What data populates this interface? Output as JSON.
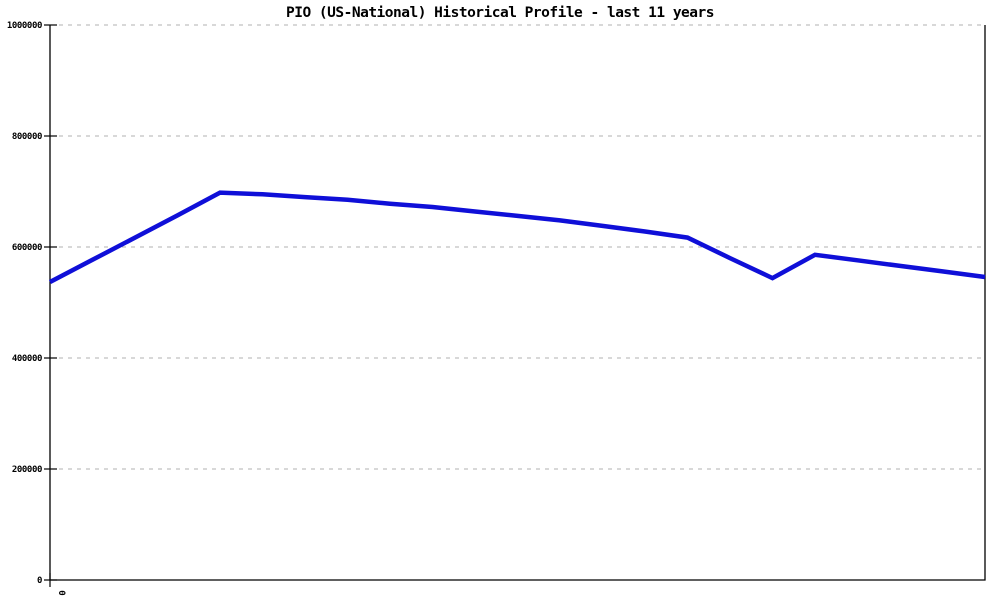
{
  "chart_data": {
    "type": "line",
    "title": "PIO (US-National) Historical Profile - last 11 years",
    "x": [
      0,
      1,
      2,
      3,
      4,
      5,
      6,
      7,
      8,
      9,
      10,
      11,
      12,
      13,
      14,
      15,
      16,
      17,
      18,
      19,
      20,
      21,
      22
    ],
    "values": [
      537000,
      577000,
      617000,
      657000,
      698000,
      695000,
      690000,
      685000,
      678000,
      672000,
      664000,
      656000,
      648000,
      638000,
      628000,
      617000,
      580000,
      544000,
      586000,
      576000,
      566000,
      556000,
      546000
    ],
    "xlabel": "",
    "ylabel": "",
    "ylim": [
      0,
      1000000
    ],
    "y_tick_interval": 200000,
    "y_tick_labels": [
      "0",
      "200000",
      "400000",
      "600000",
      "800000",
      "1000000"
    ],
    "x_tick_labels_visible": [
      "0"
    ],
    "grid": "horizontal-dotted",
    "legend": "none",
    "line_color": "#0f0fd8",
    "grid_color": "#b0b0b0",
    "axis_color": "#000000",
    "text_color": "#000000",
    "background_color": "#ffffff"
  }
}
